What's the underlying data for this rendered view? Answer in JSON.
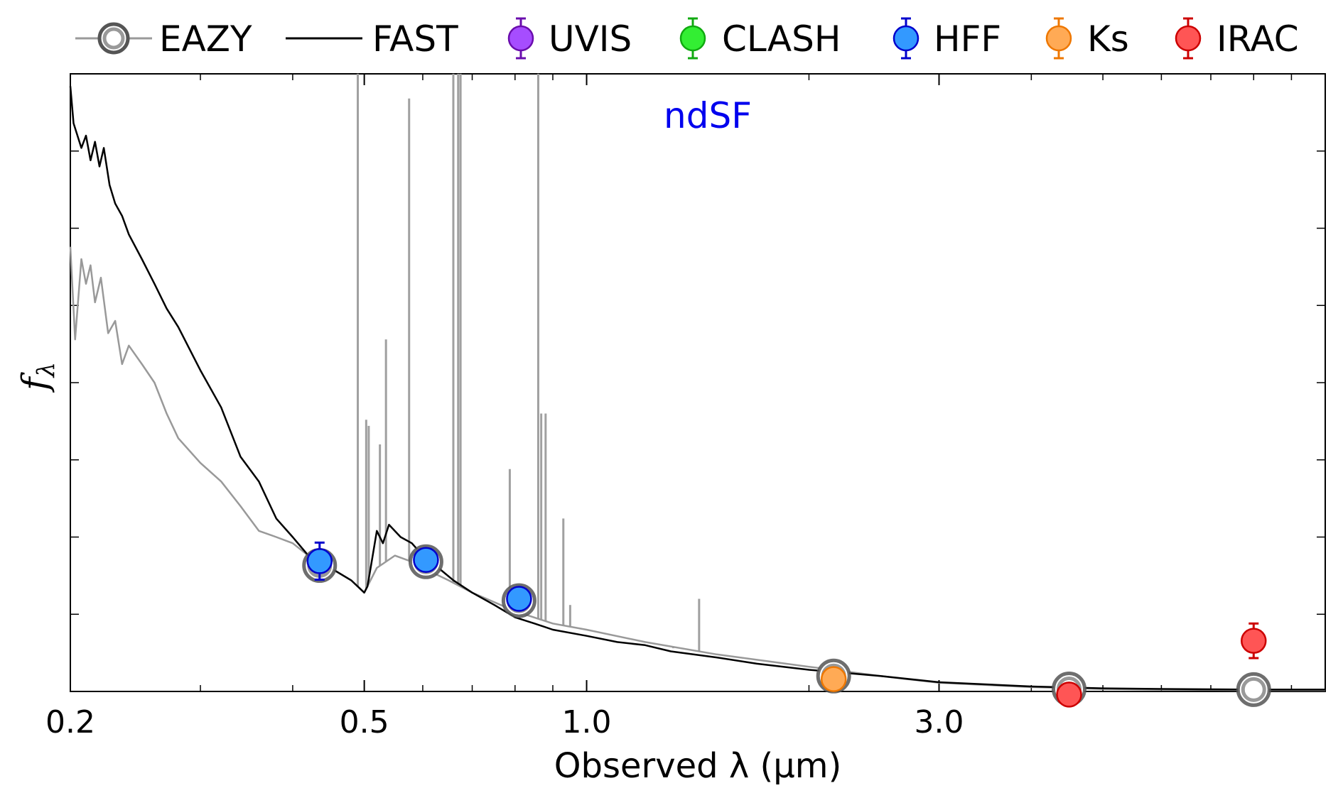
{
  "chart_data": {
    "type": "line",
    "title": "",
    "xlabel": "Observed λ (μm)",
    "ylabel": "f",
    "ylabel_sub": "λ",
    "xscale": "log",
    "xlim": [
      0.2,
      10.0
    ],
    "ylim": [
      0,
      1.0
    ],
    "y_tick_labels": false,
    "x_ticks": [
      {
        "value": 0.2,
        "label": "0.2"
      },
      {
        "value": 0.5,
        "label": "0.5"
      },
      {
        "value": 1.0,
        "label": "1.0"
      },
      {
        "value": 3.0,
        "label": "3.0"
      }
    ],
    "x_minor_ticks": [
      0.3,
      0.4,
      0.6,
      0.7,
      0.8,
      0.9,
      2.0,
      4.0,
      5.0,
      6.0,
      7.0,
      8.0,
      9.0
    ],
    "annotation": {
      "text": "ndSF",
      "color": "#0000ee"
    },
    "legend": {
      "placement": "top",
      "entries": [
        {
          "label": "EAZY",
          "kind": "eazy",
          "color": "#999999"
        },
        {
          "label": "FAST",
          "kind": "line",
          "color": "#000000"
        },
        {
          "label": "UVIS",
          "kind": "point",
          "color": "#a64dff",
          "edge": "#6a0dad"
        },
        {
          "label": "CLASH",
          "kind": "point",
          "color": "#33ee33",
          "edge": "#10aa10"
        },
        {
          "label": "HFF",
          "kind": "point",
          "color": "#3399ff",
          "edge": "#0000cc"
        },
        {
          "label": "Ks",
          "kind": "point",
          "color": "#ffaa55",
          "edge": "#ee7700"
        },
        {
          "label": "IRAC",
          "kind": "point",
          "color": "#ff5555",
          "edge": "#cc0000"
        }
      ]
    },
    "series": [
      {
        "name": "FAST",
        "color": "#000000",
        "x": [
          0.2,
          0.202,
          0.207,
          0.21,
          0.213,
          0.216,
          0.219,
          0.222,
          0.226,
          0.23,
          0.235,
          0.24,
          0.25,
          0.26,
          0.27,
          0.28,
          0.3,
          0.32,
          0.34,
          0.36,
          0.38,
          0.4,
          0.42,
          0.45,
          0.48,
          0.5,
          0.505,
          0.51,
          0.52,
          0.53,
          0.54,
          0.56,
          0.58,
          0.6,
          0.63,
          0.66,
          0.7,
          0.75,
          0.8,
          0.85,
          0.9,
          1.0,
          1.1,
          1.2,
          1.3,
          1.5,
          1.7,
          2.0,
          2.5,
          3.0,
          4.0,
          5.0,
          6.0,
          8.0,
          10.0
        ],
        "y": [
          0.98,
          0.92,
          0.88,
          0.9,
          0.86,
          0.89,
          0.85,
          0.88,
          0.82,
          0.79,
          0.77,
          0.74,
          0.7,
          0.66,
          0.62,
          0.59,
          0.52,
          0.46,
          0.38,
          0.34,
          0.28,
          0.25,
          0.22,
          0.2,
          0.18,
          0.16,
          0.17,
          0.2,
          0.26,
          0.24,
          0.27,
          0.25,
          0.24,
          0.22,
          0.2,
          0.18,
          0.16,
          0.14,
          0.12,
          0.11,
          0.1,
          0.09,
          0.08,
          0.075,
          0.065,
          0.055,
          0.045,
          0.035,
          0.025,
          0.015,
          0.008,
          0.005,
          0.004,
          0.003,
          0.003
        ]
      },
      {
        "name": "EAZY",
        "color": "#999999",
        "x": [
          0.2,
          0.203,
          0.207,
          0.21,
          0.213,
          0.216,
          0.22,
          0.225,
          0.23,
          0.235,
          0.24,
          0.25,
          0.26,
          0.27,
          0.28,
          0.3,
          0.32,
          0.34,
          0.36,
          0.38,
          0.4,
          0.42,
          0.45,
          0.48,
          0.5,
          0.52,
          0.55,
          0.58,
          0.6,
          0.65,
          0.7,
          0.8,
          0.9,
          1.0,
          1.2,
          1.5,
          2.0,
          2.5,
          3.0,
          4.0,
          5.0,
          6.0,
          8.0,
          10.0
        ],
        "y": [
          0.72,
          0.57,
          0.7,
          0.66,
          0.69,
          0.63,
          0.67,
          0.58,
          0.6,
          0.53,
          0.56,
          0.53,
          0.5,
          0.45,
          0.41,
          0.37,
          0.34,
          0.3,
          0.26,
          0.25,
          0.24,
          0.22,
          0.2,
          0.18,
          0.16,
          0.2,
          0.22,
          0.21,
          0.2,
          0.18,
          0.16,
          0.13,
          0.11,
          0.1,
          0.08,
          0.06,
          0.04,
          0.025,
          0.014,
          0.007,
          0.004,
          0.003,
          0.002,
          0.002
        ]
      }
    ],
    "eazy_emission_lines": [
      {
        "x": 0.49,
        "peak": 1.02
      },
      {
        "x": 0.503,
        "peak": 0.44
      },
      {
        "x": 0.507,
        "peak": 0.43
      },
      {
        "x": 0.525,
        "peak": 0.4
      },
      {
        "x": 0.535,
        "peak": 0.57
      },
      {
        "x": 0.575,
        "peak": 0.96
      },
      {
        "x": 0.66,
        "peak": 1.02
      },
      {
        "x": 0.67,
        "peak": 1.02
      },
      {
        "x": 0.675,
        "peak": 1.02
      },
      {
        "x": 0.787,
        "peak": 0.36
      },
      {
        "x": 0.86,
        "peak": 1.02
      },
      {
        "x": 0.868,
        "peak": 0.45
      },
      {
        "x": 0.88,
        "peak": 0.45
      },
      {
        "x": 0.93,
        "peak": 0.28
      },
      {
        "x": 0.95,
        "peak": 0.14
      },
      {
        "x": 1.31,
        "peak": 0.07
      },
      {
        "x": 1.42,
        "peak": 0.15
      }
    ],
    "photometry": [
      {
        "band": "HFF",
        "x": 0.435,
        "y": 0.211,
        "err": 0.03,
        "color": "#3399ff",
        "edge": "#0000cc"
      },
      {
        "band": "HFF",
        "x": 0.606,
        "y": 0.213,
        "err": 0.01,
        "color": "#3399ff",
        "edge": "#0000cc"
      },
      {
        "band": "HFF",
        "x": 0.81,
        "y": 0.15,
        "err": 0.01,
        "color": "#3399ff",
        "edge": "#0000cc"
      },
      {
        "band": "Ks",
        "x": 2.16,
        "y": 0.02,
        "err": 0.01,
        "color": "#ffaa55",
        "edge": "#ee7700"
      },
      {
        "band": "IRAC",
        "x": 4.5,
        "y": -0.005,
        "err": 0.01,
        "color": "#ff5555",
        "edge": "#cc0000"
      },
      {
        "band": "IRAC",
        "x": 8.0,
        "y": 0.082,
        "err": 0.028,
        "color": "#ff5555",
        "edge": "#cc0000"
      }
    ],
    "eazy_model_photometry": [
      {
        "x": 0.435,
        "y": 0.204
      },
      {
        "x": 0.606,
        "y": 0.21
      },
      {
        "x": 0.81,
        "y": 0.147
      },
      {
        "x": 2.16,
        "y": 0.025
      },
      {
        "x": 4.5,
        "y": 0.004
      },
      {
        "x": 8.0,
        "y": 0.003
      }
    ]
  }
}
